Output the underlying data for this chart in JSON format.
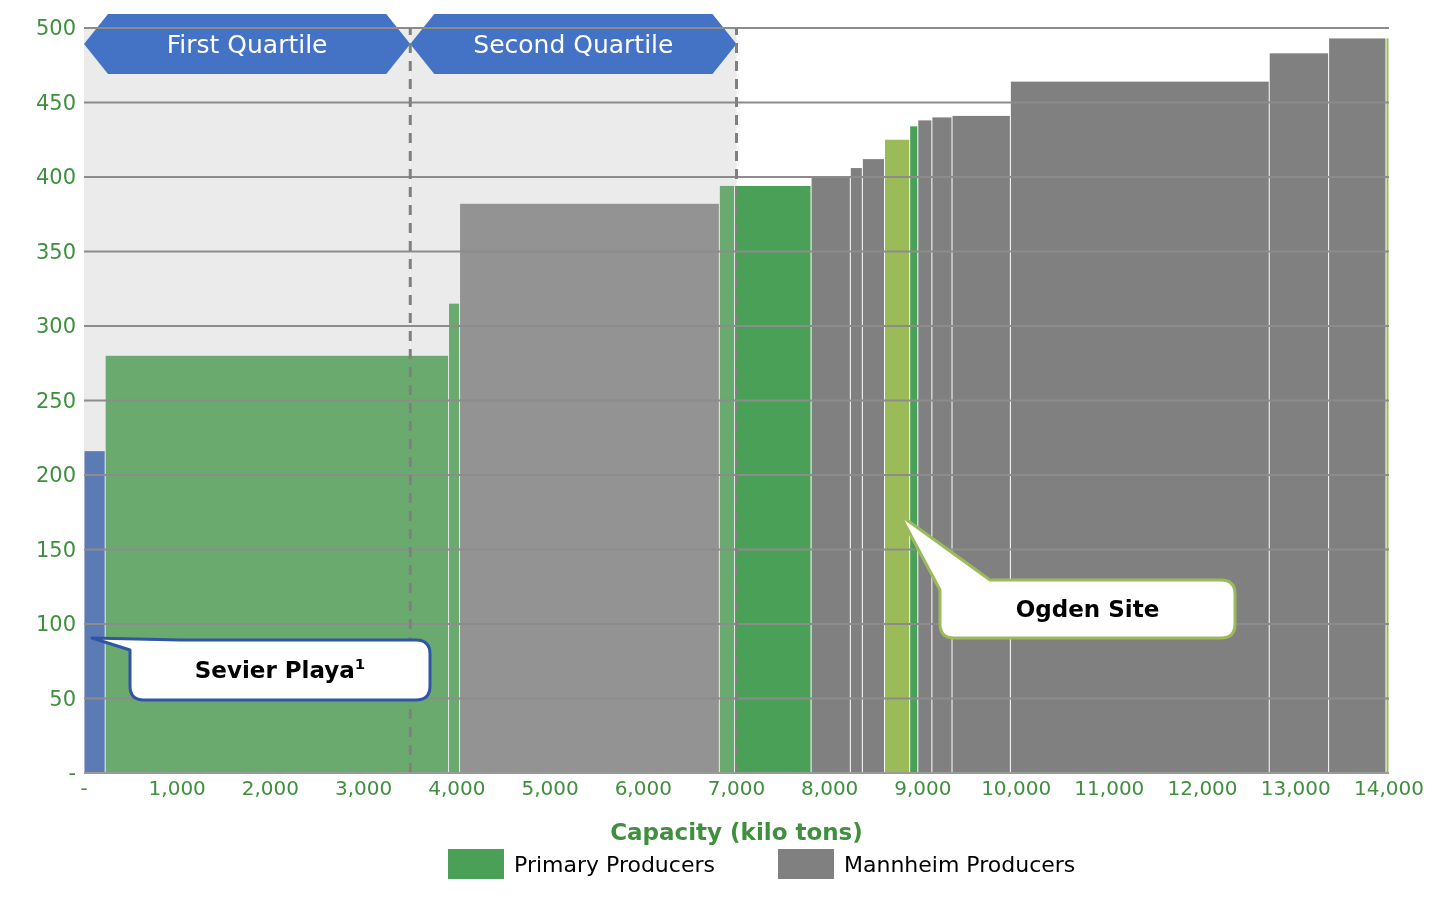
{
  "chart_data": {
    "type": "histogram",
    "bins": [
      0,
      227,
      3911,
      4029,
      6816,
      6979,
      7800,
      8221,
      8350,
      8588,
      8858,
      8945,
      9096,
      9312,
      9938,
      12715,
      13352,
      13968,
      14000
    ],
    "series": [
      {
        "color": "#5b7bb4",
        "values": [
          216,
          null,
          null,
          null,
          null,
          null,
          null,
          null,
          null,
          null,
          null,
          null,
          null,
          null,
          null,
          null,
          null,
          null
        ]
      },
      {
        "color": "#6aaa6e",
        "values": [
          null,
          280,
          315,
          null,
          394,
          null,
          null,
          null,
          null,
          null,
          null,
          null,
          null,
          null,
          null,
          null,
          null,
          null
        ]
      },
      {
        "name": "Primary Producers",
        "color": "#4aa057",
        "values": [
          null,
          null,
          null,
          null,
          null,
          394,
          null,
          null,
          null,
          null,
          434,
          null,
          null,
          null,
          null,
          null,
          null,
          null
        ]
      },
      {
        "color": "#939393",
        "values": [
          null,
          null,
          null,
          382,
          null,
          null,
          null,
          null,
          null,
          null,
          null,
          null,
          null,
          null,
          null,
          null,
          null,
          null
        ]
      },
      {
        "name": "Mannheim Producers",
        "color": "#808080",
        "values": [
          null,
          null,
          null,
          null,
          null,
          null,
          400,
          406,
          412,
          null,
          null,
          438,
          440,
          441,
          464,
          483,
          493,
          null
        ]
      },
      {
        "color": "#9bbb59",
        "values": [
          null,
          null,
          null,
          null,
          null,
          null,
          null,
          null,
          null,
          425,
          null,
          null,
          null,
          null,
          null,
          null,
          null,
          493
        ]
      }
    ],
    "xlabel": "Capacity (kilo tons)",
    "xlim": [
      0,
      14000
    ],
    "xticks": [
      {
        "value": 0,
        "label": "-"
      },
      {
        "value": 1000,
        "label": "1,000"
      },
      {
        "value": 2000,
        "label": "2,000"
      },
      {
        "value": 3000,
        "label": "3,000"
      },
      {
        "value": 4000,
        "label": "4,000"
      },
      {
        "value": 5000,
        "label": "5,000"
      },
      {
        "value": 6000,
        "label": "6,000"
      },
      {
        "value": 7000,
        "label": "7,000"
      },
      {
        "value": 8000,
        "label": "8,000"
      },
      {
        "value": 9000,
        "label": "9,000"
      },
      {
        "value": 10000,
        "label": "10,000"
      },
      {
        "value": 11000,
        "label": "11,000"
      },
      {
        "value": 12000,
        "label": "12,000"
      },
      {
        "value": 13000,
        "label": "13,000"
      },
      {
        "value": 14000,
        "label": "14,000"
      }
    ],
    "ylim": [
      0,
      500
    ],
    "yticks": [
      {
        "value": 0,
        "label": "-"
      },
      50,
      100,
      150,
      200,
      250,
      300,
      350,
      400,
      450,
      500
    ],
    "grid": "y",
    "legend": "bottom",
    "bands": [
      {
        "axis": "x",
        "from": 0,
        "to": 3500,
        "label": "First Quartile",
        "color": "#ebebeb"
      },
      {
        "axis": "x",
        "from": 3500,
        "to": 7000,
        "label": "Second Quartile",
        "color": "#ebebeb"
      }
    ],
    "ref_lines": [
      {
        "axis": "x",
        "value": 3500,
        "color": "#808080",
        "line_style": "dashed"
      },
      {
        "axis": "x",
        "value": 7000,
        "color": "#808080",
        "line_style": "dashed"
      }
    ],
    "annotations": [
      "Sevier Playa$^{1}$",
      "Ogden Site"
    ]
  }
}
